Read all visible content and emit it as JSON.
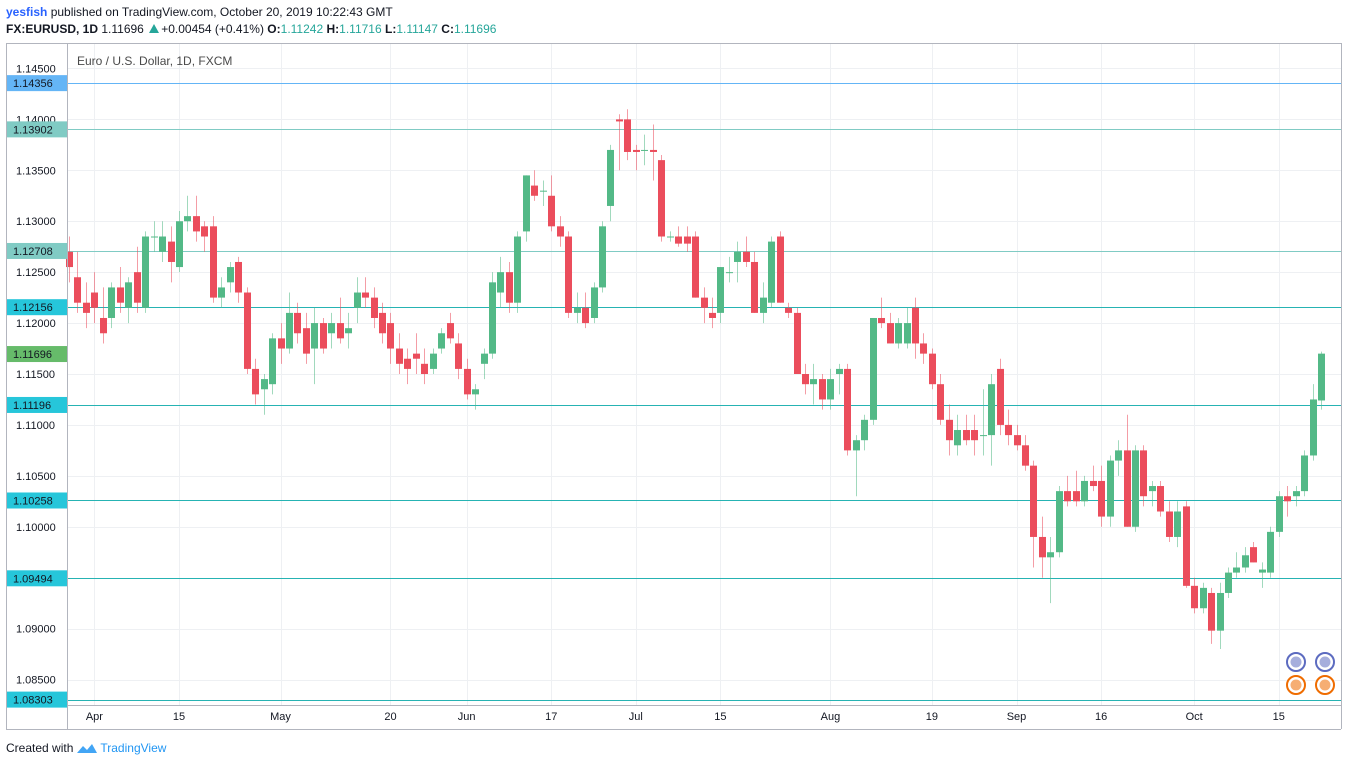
{
  "header": {
    "user": "yesfish",
    "published": "published on TradingView.com, October 20, 2019 10:22:43 GMT",
    "symbol_line": "FX:EURUSD, 1D",
    "last": "1.11696",
    "change": "+0.00454 (+0.41%)",
    "o_label": "O:",
    "o": "1.11242",
    "h_label": "H:",
    "h": "1.11716",
    "l_label": "L:",
    "l": "1.11147",
    "c_label": "C:",
    "c": "1.11696"
  },
  "footer": {
    "created_with": "Created with",
    "brand": "TradingView"
  },
  "chart_data": {
    "type": "candlestick",
    "title": "Euro / U.S. Dollar, 1D, FXCM",
    "ylim": [
      1.0825,
      1.1475
    ],
    "y_ticks": [
      "1.14500",
      "1.14000",
      "1.13500",
      "1.13000",
      "1.12500",
      "1.12000",
      "1.11500",
      "1.11000",
      "1.10500",
      "1.10000",
      "1.09500",
      "1.09000",
      "1.08500"
    ],
    "x_ticks": [
      {
        "label": "Apr",
        "index": 3
      },
      {
        "label": "15",
        "index": 13
      },
      {
        "label": "May",
        "index": 25
      },
      {
        "label": "20",
        "index": 38
      },
      {
        "label": "Jun",
        "index": 47
      },
      {
        "label": "17",
        "index": 57
      },
      {
        "label": "Jul",
        "index": 67
      },
      {
        "label": "15",
        "index": 77
      },
      {
        "label": "Aug",
        "index": 90
      },
      {
        "label": "19",
        "index": 102
      },
      {
        "label": "Sep",
        "index": 112
      },
      {
        "label": "16",
        "index": 122
      },
      {
        "label": "Oct",
        "index": 133
      },
      {
        "label": "15",
        "index": 143
      }
    ],
    "levels": [
      {
        "value": 1.14356,
        "label": "1.14356",
        "color": "#64b5f6",
        "badge": "#64b5f6"
      },
      {
        "value": 1.13902,
        "label": "1.13902",
        "color": "#80cbc4",
        "badge": "#80cbc4"
      },
      {
        "value": 1.12708,
        "label": "1.12708",
        "color": "#80cbc4",
        "badge": "#80cbc4"
      },
      {
        "value": 1.12156,
        "label": "1.12156",
        "color": "#26b3b3",
        "badge": "#26c6da"
      },
      {
        "value": 1.11196,
        "label": "1.11196",
        "color": "#26b3b3",
        "badge": "#26c6da"
      },
      {
        "value": 1.10258,
        "label": "1.10258",
        "color": "#26b3b3",
        "badge": "#26c6da"
      },
      {
        "value": 1.09494,
        "label": "1.09494",
        "color": "#26b3b3",
        "badge": "#26c6da"
      },
      {
        "value": 1.08303,
        "label": "1.08303",
        "color": "#26b3b3",
        "badge": "#26c6da"
      }
    ],
    "last_price": {
      "value": 1.11696,
      "label": "1.11696",
      "color": "#66bb6a"
    },
    "up_color": "#53b987",
    "down_color": "#eb4d5c",
    "candles": [
      [
        1.127,
        1.1285,
        1.124,
        1.1255
      ],
      [
        1.1245,
        1.127,
        1.121,
        1.122
      ],
      [
        1.122,
        1.124,
        1.1195,
        1.121
      ],
      [
        1.123,
        1.125,
        1.12,
        1.1215
      ],
      [
        1.1205,
        1.1235,
        1.118,
        1.119
      ],
      [
        1.1205,
        1.124,
        1.1195,
        1.1235
      ],
      [
        1.1235,
        1.1255,
        1.121,
        1.122
      ],
      [
        1.1215,
        1.1245,
        1.12,
        1.124
      ],
      [
        1.125,
        1.1275,
        1.121,
        1.122
      ],
      [
        1.1215,
        1.129,
        1.121,
        1.1285
      ],
      [
        1.1285,
        1.13,
        1.127,
        1.1285
      ],
      [
        1.127,
        1.13,
        1.126,
        1.1285
      ],
      [
        1.128,
        1.1295,
        1.124,
        1.126
      ],
      [
        1.1255,
        1.131,
        1.125,
        1.13
      ],
      [
        1.13,
        1.1325,
        1.129,
        1.1305
      ],
      [
        1.1305,
        1.1325,
        1.128,
        1.129
      ],
      [
        1.1295,
        1.13,
        1.127,
        1.1285
      ],
      [
        1.1295,
        1.1305,
        1.122,
        1.1225
      ],
      [
        1.1225,
        1.1245,
        1.1215,
        1.1235
      ],
      [
        1.124,
        1.126,
        1.123,
        1.1255
      ],
      [
        1.126,
        1.1265,
        1.122,
        1.123
      ],
      [
        1.123,
        1.1235,
        1.115,
        1.1155
      ],
      [
        1.1155,
        1.1165,
        1.112,
        1.113
      ],
      [
        1.1135,
        1.115,
        1.111,
        1.1145
      ],
      [
        1.114,
        1.119,
        1.113,
        1.1185
      ],
      [
        1.1185,
        1.12,
        1.116,
        1.1175
      ],
      [
        1.1175,
        1.123,
        1.117,
        1.121
      ],
      [
        1.121,
        1.122,
        1.118,
        1.119
      ],
      [
        1.1195,
        1.121,
        1.116,
        1.117
      ],
      [
        1.1175,
        1.1215,
        1.114,
        1.12
      ],
      [
        1.12,
        1.1205,
        1.117,
        1.1175
      ],
      [
        1.119,
        1.121,
        1.1175,
        1.12
      ],
      [
        1.12,
        1.1225,
        1.118,
        1.1185
      ],
      [
        1.119,
        1.121,
        1.1175,
        1.1195
      ],
      [
        1.1215,
        1.1245,
        1.12,
        1.123
      ],
      [
        1.123,
        1.1245,
        1.1215,
        1.1225
      ],
      [
        1.1225,
        1.1235,
        1.1195,
        1.1205
      ],
      [
        1.121,
        1.122,
        1.118,
        1.119
      ],
      [
        1.12,
        1.121,
        1.116,
        1.1175
      ],
      [
        1.1175,
        1.119,
        1.115,
        1.116
      ],
      [
        1.1165,
        1.1175,
        1.114,
        1.1155
      ],
      [
        1.117,
        1.119,
        1.115,
        1.1165
      ],
      [
        1.116,
        1.1175,
        1.114,
        1.115
      ],
      [
        1.1155,
        1.1175,
        1.115,
        1.117
      ],
      [
        1.1175,
        1.1195,
        1.117,
        1.119
      ],
      [
        1.12,
        1.121,
        1.118,
        1.1185
      ],
      [
        1.118,
        1.119,
        1.1145,
        1.1155
      ],
      [
        1.1155,
        1.1165,
        1.1125,
        1.113
      ],
      [
        1.113,
        1.114,
        1.1115,
        1.1135
      ],
      [
        1.116,
        1.1175,
        1.1145,
        1.117
      ],
      [
        1.117,
        1.125,
        1.1165,
        1.124
      ],
      [
        1.123,
        1.1265,
        1.1215,
        1.125
      ],
      [
        1.125,
        1.126,
        1.121,
        1.122
      ],
      [
        1.122,
        1.129,
        1.121,
        1.1285
      ],
      [
        1.129,
        1.1345,
        1.128,
        1.1345
      ],
      [
        1.1335,
        1.135,
        1.132,
        1.1325
      ],
      [
        1.133,
        1.134,
        1.1315,
        1.133
      ],
      [
        1.1325,
        1.1345,
        1.129,
        1.1295
      ],
      [
        1.1295,
        1.1305,
        1.1275,
        1.1285
      ],
      [
        1.1285,
        1.129,
        1.1205,
        1.121
      ],
      [
        1.121,
        1.123,
        1.12,
        1.1215
      ],
      [
        1.1215,
        1.123,
        1.1195,
        1.12
      ],
      [
        1.1205,
        1.124,
        1.12,
        1.1235
      ],
      [
        1.1235,
        1.13,
        1.123,
        1.1295
      ],
      [
        1.1315,
        1.1375,
        1.13,
        1.137
      ],
      [
        1.14,
        1.1405,
        1.135,
        1.1398
      ],
      [
        1.14,
        1.141,
        1.136,
        1.1368
      ],
      [
        1.137,
        1.1375,
        1.135,
        1.1368
      ],
      [
        1.137,
        1.1385,
        1.1355,
        1.137
      ],
      [
        1.137,
        1.1395,
        1.134,
        1.1368
      ],
      [
        1.136,
        1.1365,
        1.128,
        1.1285
      ],
      [
        1.1285,
        1.129,
        1.128,
        1.1285
      ],
      [
        1.1285,
        1.1295,
        1.1275,
        1.1278
      ],
      [
        1.1285,
        1.1295,
        1.127,
        1.1278
      ],
      [
        1.1285,
        1.129,
        1.1225,
        1.1225
      ],
      [
        1.1225,
        1.1235,
        1.12,
        1.1215
      ],
      [
        1.121,
        1.1225,
        1.1195,
        1.1205
      ],
      [
        1.121,
        1.1255,
        1.12,
        1.1255
      ],
      [
        1.125,
        1.1265,
        1.124,
        1.125
      ],
      [
        1.126,
        1.128,
        1.124,
        1.127
      ],
      [
        1.127,
        1.1285,
        1.1255,
        1.126
      ],
      [
        1.126,
        1.127,
        1.121,
        1.121
      ],
      [
        1.121,
        1.124,
        1.12,
        1.1225
      ],
      [
        1.122,
        1.1285,
        1.1215,
        1.128
      ],
      [
        1.1285,
        1.129,
        1.122,
        1.122
      ],
      [
        1.1215,
        1.122,
        1.1205,
        1.121
      ],
      [
        1.121,
        1.1215,
        1.115,
        1.115
      ],
      [
        1.115,
        1.116,
        1.113,
        1.114
      ],
      [
        1.114,
        1.116,
        1.112,
        1.1145
      ],
      [
        1.1145,
        1.115,
        1.1115,
        1.1125
      ],
      [
        1.1125,
        1.1155,
        1.1115,
        1.1145
      ],
      [
        1.115,
        1.116,
        1.113,
        1.1155
      ],
      [
        1.1155,
        1.116,
        1.107,
        1.1075
      ],
      [
        1.1075,
        1.109,
        1.103,
        1.1085
      ],
      [
        1.1085,
        1.111,
        1.1075,
        1.1105
      ],
      [
        1.1105,
        1.1205,
        1.11,
        1.1205
      ],
      [
        1.1205,
        1.1225,
        1.1195,
        1.12
      ],
      [
        1.12,
        1.121,
        1.118,
        1.118
      ],
      [
        1.118,
        1.1205,
        1.1175,
        1.12
      ],
      [
        1.118,
        1.1215,
        1.1175,
        1.12
      ],
      [
        1.1215,
        1.1225,
        1.1165,
        1.118
      ],
      [
        1.118,
        1.119,
        1.116,
        1.117
      ],
      [
        1.117,
        1.1175,
        1.1135,
        1.114
      ],
      [
        1.114,
        1.115,
        1.11,
        1.1105
      ],
      [
        1.1105,
        1.112,
        1.107,
        1.1085
      ],
      [
        1.108,
        1.111,
        1.107,
        1.1095
      ],
      [
        1.1095,
        1.111,
        1.108,
        1.1085
      ],
      [
        1.1095,
        1.111,
        1.107,
        1.1085
      ],
      [
        1.109,
        1.1135,
        1.107,
        1.109
      ],
      [
        1.109,
        1.115,
        1.106,
        1.114
      ],
      [
        1.1155,
        1.1165,
        1.109,
        1.11
      ],
      [
        1.11,
        1.1115,
        1.108,
        1.109
      ],
      [
        1.109,
        1.11,
        1.1075,
        1.108
      ],
      [
        1.108,
        1.109,
        1.1055,
        1.106
      ],
      [
        1.106,
        1.1065,
        1.096,
        1.099
      ],
      [
        1.099,
        1.101,
        1.095,
        1.097
      ],
      [
        1.097,
        1.099,
        1.0925,
        1.0975
      ],
      [
        1.0975,
        1.104,
        1.097,
        1.1035
      ],
      [
        1.1035,
        1.105,
        1.102,
        1.1025
      ],
      [
        1.1035,
        1.1055,
        1.102,
        1.1025
      ],
      [
        1.1025,
        1.105,
        1.102,
        1.1045
      ],
      [
        1.1045,
        1.106,
        1.1035,
        1.104
      ],
      [
        1.1045,
        1.106,
        1.1,
        1.101
      ],
      [
        1.101,
        1.107,
        1.1,
        1.1065
      ],
      [
        1.1065,
        1.1085,
        1.105,
        1.1075
      ],
      [
        1.1075,
        1.111,
        1.1,
        1.1
      ],
      [
        1.1,
        1.108,
        1.0995,
        1.1075
      ],
      [
        1.1075,
        1.108,
        1.102,
        1.103
      ],
      [
        1.1035,
        1.1045,
        1.102,
        1.104
      ],
      [
        1.104,
        1.1045,
        1.101,
        1.1015
      ],
      [
        1.1015,
        1.1025,
        1.0985,
        1.099
      ],
      [
        1.099,
        1.1025,
        1.098,
        1.1015
      ],
      [
        1.102,
        1.1025,
        1.094,
        1.0942
      ],
      [
        1.0942,
        1.095,
        1.0915,
        1.092
      ],
      [
        1.092,
        1.0945,
        1.0915,
        1.094
      ],
      [
        1.0935,
        1.094,
        1.0885,
        1.0898
      ],
      [
        1.0898,
        1.0945,
        1.088,
        1.0935
      ],
      [
        1.0935,
        1.096,
        1.093,
        1.0955
      ],
      [
        1.0955,
        1.0975,
        1.095,
        1.096
      ],
      [
        1.096,
        1.098,
        1.0955,
        1.0972
      ],
      [
        1.098,
        1.0985,
        1.0965,
        1.0965
      ],
      [
        1.0955,
        1.0965,
        1.094,
        1.0958
      ],
      [
        1.0955,
        1.1,
        1.095,
        1.0995
      ],
      [
        1.0995,
        1.1035,
        1.099,
        1.103
      ],
      [
        1.103,
        1.104,
        1.101,
        1.1025
      ],
      [
        1.103,
        1.104,
        1.102,
        1.1035
      ],
      [
        1.1035,
        1.1075,
        1.103,
        1.107
      ],
      [
        1.107,
        1.114,
        1.1065,
        1.1125
      ],
      [
        1.1124,
        1.1172,
        1.1115,
        1.117
      ]
    ]
  }
}
